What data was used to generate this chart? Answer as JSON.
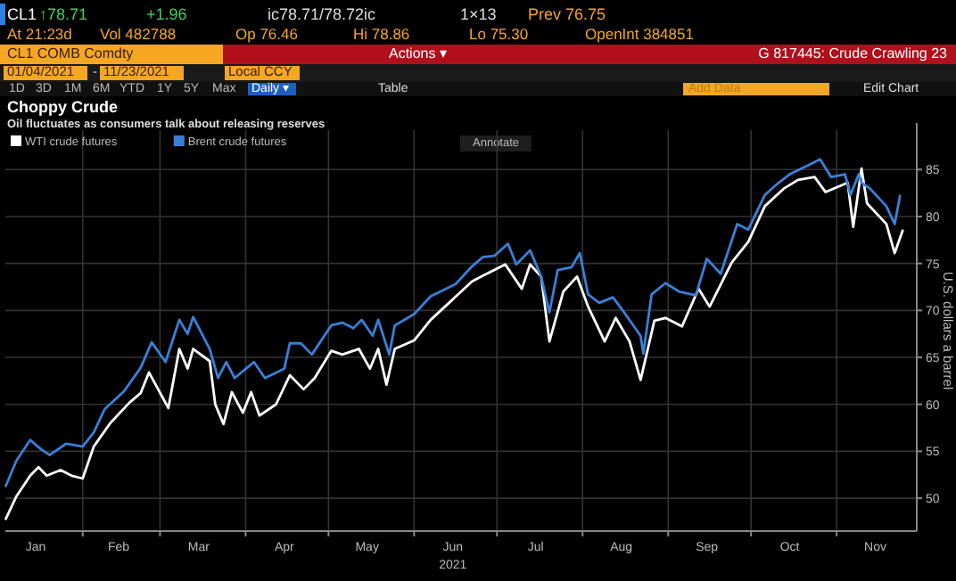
{
  "chart_data": {
    "type": "line",
    "title": "Choppy Crude",
    "subtitle": "Oil fluctuates as consumers talk about releasing reserves",
    "xlabel": "2021",
    "y2label": "U.S. dollars a barrel",
    "annotations": [
      "CL1",
      "↑78.71",
      "+1.96",
      "ic78.71/78.72ic",
      "1×13",
      "Prev 76.75",
      "At 21:23d",
      "Vol 482788",
      "Op 76.46",
      "Hi 78.86",
      "Lo 75.30",
      "OpenInt 384851",
      "CL1 COMB Comdty",
      "Actions ▾",
      "G 817445: Crude Crawling 23",
      "01/04/2021",
      "-",
      "11/23/2021",
      "Local CCY",
      "1D",
      "3D",
      "1M",
      "6M",
      "YTD",
      "1Y",
      "5Y",
      "Max",
      "Daily ▾",
      "Table",
      "Add Data",
      "Edit Chart",
      "Annotate"
    ],
    "xlim": [
      "2021-01-04",
      "2021-11-30"
    ],
    "xticks": [
      {
        "value": "2021-01-15",
        "label": "Jan"
      },
      {
        "value": "2021-02-01",
        "label": null
      },
      {
        "value": "2021-02-14",
        "label": "Feb"
      },
      {
        "value": "2021-03-01",
        "label": null
      },
      {
        "value": "2021-03-15",
        "label": "Mar"
      },
      {
        "value": "2021-04-01",
        "label": null
      },
      {
        "value": "2021-04-15",
        "label": "Apr"
      },
      {
        "value": "2021-05-01",
        "label": null
      },
      {
        "value": "2021-05-15",
        "label": "May"
      },
      {
        "value": "2021-06-01",
        "label": null
      },
      {
        "value": "2021-06-15",
        "label": "Jun"
      },
      {
        "value": "2021-07-01",
        "label": null
      },
      {
        "value": "2021-07-15",
        "label": "Jul"
      },
      {
        "value": "2021-08-01",
        "label": null
      },
      {
        "value": "2021-08-15",
        "label": "Aug"
      },
      {
        "value": "2021-09-01",
        "label": null
      },
      {
        "value": "2021-09-15",
        "label": "Sep"
      },
      {
        "value": "2021-10-01",
        "label": null
      },
      {
        "value": "2021-10-15",
        "label": "Oct"
      },
      {
        "value": "2021-11-01",
        "label": null
      },
      {
        "value": "2021-11-15",
        "label": "Nov"
      }
    ],
    "ylim": [
      46.5,
      89.2
    ],
    "yticks": [
      50,
      55,
      60,
      65,
      70,
      75,
      80,
      85
    ],
    "grid": true,
    "legend": "top left",
    "line_style": "solid",
    "series": [
      {
        "name": "WTI crude futures",
        "color": "#ffffff",
        "x": [
          "2021-01-04",
          "2021-01-08",
          "2021-01-13",
          "2021-01-16",
          "2021-01-19",
          "2021-01-24",
          "2021-01-28",
          "2021-02-01",
          "2021-02-05",
          "2021-02-11",
          "2021-02-18",
          "2021-02-22",
          "2021-02-25",
          "2021-03-04",
          "2021-03-08",
          "2021-03-11",
          "2021-03-13",
          "2021-03-19",
          "2021-03-21",
          "2021-03-24",
          "2021-03-27",
          "2021-03-31",
          "2021-04-03",
          "2021-04-06",
          "2021-04-12",
          "2021-04-17",
          "2021-04-22",
          "2021-04-26",
          "2021-05-02",
          "2021-05-06",
          "2021-05-12",
          "2021-05-16",
          "2021-05-19",
          "2021-05-22",
          "2021-05-25",
          "2021-06-01",
          "2021-06-07",
          "2021-06-14",
          "2021-06-22",
          "2021-06-26",
          "2021-06-30",
          "2021-07-04",
          "2021-07-10",
          "2021-07-13",
          "2021-07-17",
          "2021-07-20",
          "2021-07-25",
          "2021-07-30",
          "2021-08-03",
          "2021-08-09",
          "2021-08-13",
          "2021-08-18",
          "2021-08-22",
          "2021-08-27",
          "2021-08-31",
          "2021-09-06",
          "2021-09-12",
          "2021-09-16",
          "2021-09-24",
          "2021-09-30",
          "2021-10-06",
          "2021-10-13",
          "2021-10-18",
          "2021-10-24",
          "2021-10-28",
          "2021-11-05",
          "2021-11-07",
          "2021-11-10",
          "2021-11-12",
          "2021-11-19",
          "2021-11-22",
          "2021-11-25"
        ],
        "values": [
          47.7,
          50.2,
          52.4,
          53.3,
          52.4,
          53,
          52.4,
          52.1,
          55.5,
          58,
          60.2,
          61.2,
          63.4,
          59.6,
          65.9,
          63.8,
          65.9,
          64.6,
          60,
          57.9,
          61.3,
          59.1,
          61.3,
          58.8,
          60,
          63.1,
          61.6,
          62.8,
          65.7,
          65.3,
          65.9,
          63.8,
          65.9,
          62.1,
          65.9,
          66.8,
          69,
          70.9,
          73.1,
          73.7,
          74.3,
          74.9,
          72.3,
          74.9,
          73.6,
          66.7,
          72,
          73.6,
          70.4,
          66.7,
          69.2,
          66.7,
          62.6,
          68.9,
          69.2,
          68.3,
          72.3,
          70.4,
          75.1,
          77.3,
          81.1,
          83,
          83.9,
          84.2,
          82.6,
          83.6,
          78.9,
          85.1,
          81.4,
          79.2,
          76.1,
          78.6
        ]
      },
      {
        "name": "Brent crude futures",
        "color": "#3a80d8",
        "x": [
          "2021-01-04",
          "2021-01-08",
          "2021-01-13",
          "2021-01-17",
          "2021-01-20",
          "2021-01-26",
          "2021-02-01",
          "2021-02-05",
          "2021-02-09",
          "2021-02-16",
          "2021-02-22",
          "2021-02-26",
          "2021-03-03",
          "2021-03-08",
          "2021-03-11",
          "2021-03-13",
          "2021-03-19",
          "2021-03-22",
          "2021-03-25",
          "2021-03-28",
          "2021-04-04",
          "2021-04-08",
          "2021-04-15",
          "2021-04-17",
          "2021-04-21",
          "2021-04-25",
          "2021-05-02",
          "2021-05-06",
          "2021-05-10",
          "2021-05-13",
          "2021-05-17",
          "2021-05-19",
          "2021-05-23",
          "2021-05-25",
          "2021-06-01",
          "2021-06-07",
          "2021-06-16",
          "2021-06-22",
          "2021-06-26",
          "2021-06-30",
          "2021-07-05",
          "2021-07-08",
          "2021-07-13",
          "2021-07-17",
          "2021-07-20",
          "2021-07-23",
          "2021-07-28",
          "2021-07-31",
          "2021-08-03",
          "2021-08-07",
          "2021-08-12",
          "2021-08-16",
          "2021-08-22",
          "2021-08-23",
          "2021-08-26",
          "2021-08-31",
          "2021-09-05",
          "2021-09-11",
          "2021-09-15",
          "2021-09-20",
          "2021-09-26",
          "2021-09-30",
          "2021-10-06",
          "2021-10-11",
          "2021-10-15",
          "2021-10-22",
          "2021-10-26",
          "2021-10-30",
          "2021-11-04",
          "2021-11-06",
          "2021-11-09",
          "2021-11-10",
          "2021-11-13",
          "2021-11-19",
          "2021-11-22",
          "2021-11-24"
        ],
        "values": [
          51.2,
          54,
          56.2,
          55.2,
          54.6,
          55.8,
          55.5,
          57,
          59.5,
          61.4,
          63.9,
          66.6,
          64.5,
          69,
          67.5,
          69.3,
          65.9,
          62.8,
          64.5,
          62.8,
          64.5,
          62.8,
          63.8,
          66.5,
          66.5,
          65.3,
          68.4,
          68.7,
          68.1,
          69,
          67.3,
          69,
          65.3,
          68.4,
          69.6,
          71.5,
          72.8,
          74.7,
          75.7,
          75.8,
          77.1,
          74.9,
          76.4,
          73.6,
          69.8,
          74.3,
          74.6,
          76.1,
          71.7,
          70.8,
          71.4,
          69.8,
          67.3,
          65.4,
          71.7,
          72.9,
          72,
          71.6,
          75.5,
          73.9,
          79.2,
          78.6,
          82.3,
          83.6,
          84.5,
          85.5,
          86.1,
          84.2,
          84.5,
          82.3,
          84.5,
          83.6,
          83,
          81.1,
          79.2,
          82.3
        ]
      }
    ]
  }
}
